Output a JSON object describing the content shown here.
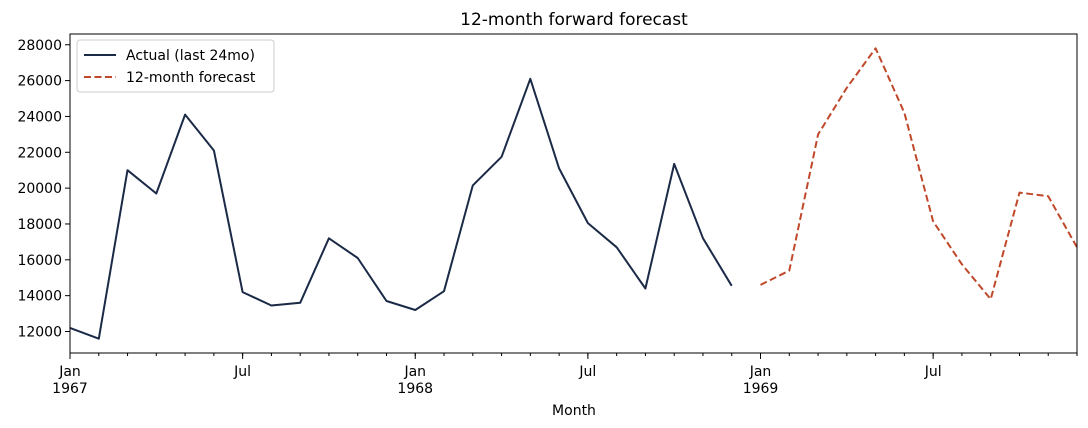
{
  "chart_data": {
    "type": "line",
    "title": "12-month forward forecast",
    "xlabel": "Month",
    "ylabel": "",
    "ylim": [
      10800,
      28600
    ],
    "xlim": [
      "1967-01",
      "1969-12"
    ],
    "grid": false,
    "legend_position": "top-left",
    "y_ticks": [
      12000,
      14000,
      16000,
      18000,
      20000,
      22000,
      24000,
      26000,
      28000
    ],
    "x_major_ticks": [
      {
        "x": "1967-01",
        "label": "Jan",
        "sublabel": "1967"
      },
      {
        "x": "1967-07",
        "label": "Jul",
        "sublabel": ""
      },
      {
        "x": "1968-01",
        "label": "Jan",
        "sublabel": "1968"
      },
      {
        "x": "1968-07",
        "label": "Jul",
        "sublabel": ""
      },
      {
        "x": "1969-01",
        "label": "Jan",
        "sublabel": "1969"
      },
      {
        "x": "1969-07",
        "label": "Jul",
        "sublabel": ""
      }
    ],
    "series": [
      {
        "name": "Actual (last 24mo)",
        "color": "#1b2a47",
        "style": "solid",
        "x": [
          "1967-01",
          "1967-02",
          "1967-03",
          "1967-04",
          "1967-05",
          "1967-06",
          "1967-07",
          "1967-08",
          "1967-09",
          "1967-10",
          "1967-11",
          "1967-12",
          "1968-01",
          "1968-02",
          "1968-03",
          "1968-04",
          "1968-05",
          "1968-06",
          "1968-07",
          "1968-08",
          "1968-09",
          "1968-10",
          "1968-11",
          "1968-12"
        ],
        "values": [
          12200,
          11600,
          21000,
          19700,
          24100,
          22100,
          14200,
          13450,
          13600,
          17200,
          16100,
          13700,
          13200,
          14250,
          20150,
          21750,
          26100,
          21100,
          18050,
          16700,
          14400,
          21350,
          17200,
          14550
        ]
      },
      {
        "name": "12-month forecast",
        "color": "#c0482a",
        "style": "dashed",
        "x": [
          "1969-01",
          "1969-02",
          "1969-03",
          "1969-04",
          "1969-05",
          "1969-06",
          "1969-07",
          "1969-08",
          "1969-09",
          "1969-10",
          "1969-11",
          "1969-12"
        ],
        "values": [
          14600,
          15400,
          23000,
          25600,
          27800,
          24200,
          18150,
          15750,
          13800,
          19750,
          19550,
          16700
        ]
      }
    ]
  }
}
